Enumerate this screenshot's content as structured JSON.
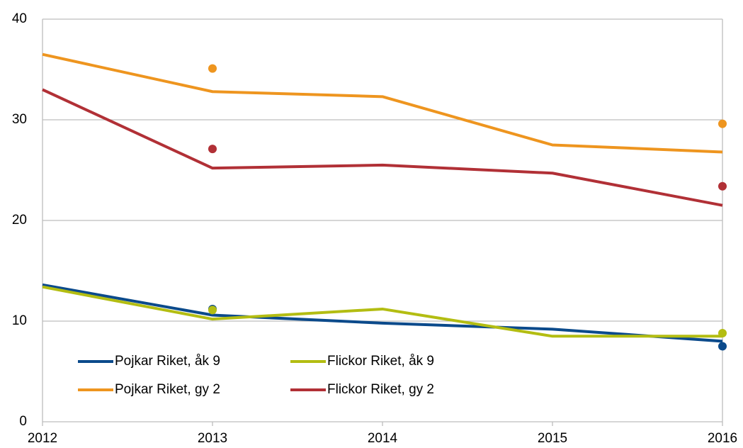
{
  "chart_data": {
    "type": "line",
    "x": [
      2012,
      2013,
      2014,
      2015,
      2016
    ],
    "xlim": [
      2012,
      2016
    ],
    "xticks": [
      2012,
      2013,
      2014,
      2015,
      2016
    ],
    "ylim": [
      0,
      40
    ],
    "yticks": [
      0,
      10,
      20,
      30,
      40
    ],
    "grid": true,
    "legend": "bottom-left",
    "series": [
      {
        "name": "Pojkar Riket, åk 9",
        "color": "#0b4a8b",
        "values": [
          13.6,
          10.6,
          9.8,
          9.2,
          8.0
        ],
        "marker_values": [
          null,
          11.2,
          null,
          null,
          7.5
        ]
      },
      {
        "name": "Flickor Riket, åk 9",
        "color": "#b3bd12",
        "values": [
          13.4,
          10.2,
          11.2,
          8.5,
          8.5
        ],
        "marker_values": [
          null,
          11.1,
          null,
          null,
          8.8
        ]
      },
      {
        "name": "Pojkar Riket, gy 2",
        "color": "#ee951f",
        "values": [
          36.5,
          32.8,
          32.3,
          27.5,
          26.8
        ],
        "marker_values": [
          null,
          35.1,
          null,
          null,
          29.6
        ]
      },
      {
        "name": "Flickor Riket, gy 2",
        "color": "#b13036",
        "values": [
          33.0,
          25.2,
          25.5,
          24.7,
          21.5
        ],
        "marker_values": [
          null,
          27.1,
          null,
          null,
          23.4
        ]
      }
    ]
  }
}
